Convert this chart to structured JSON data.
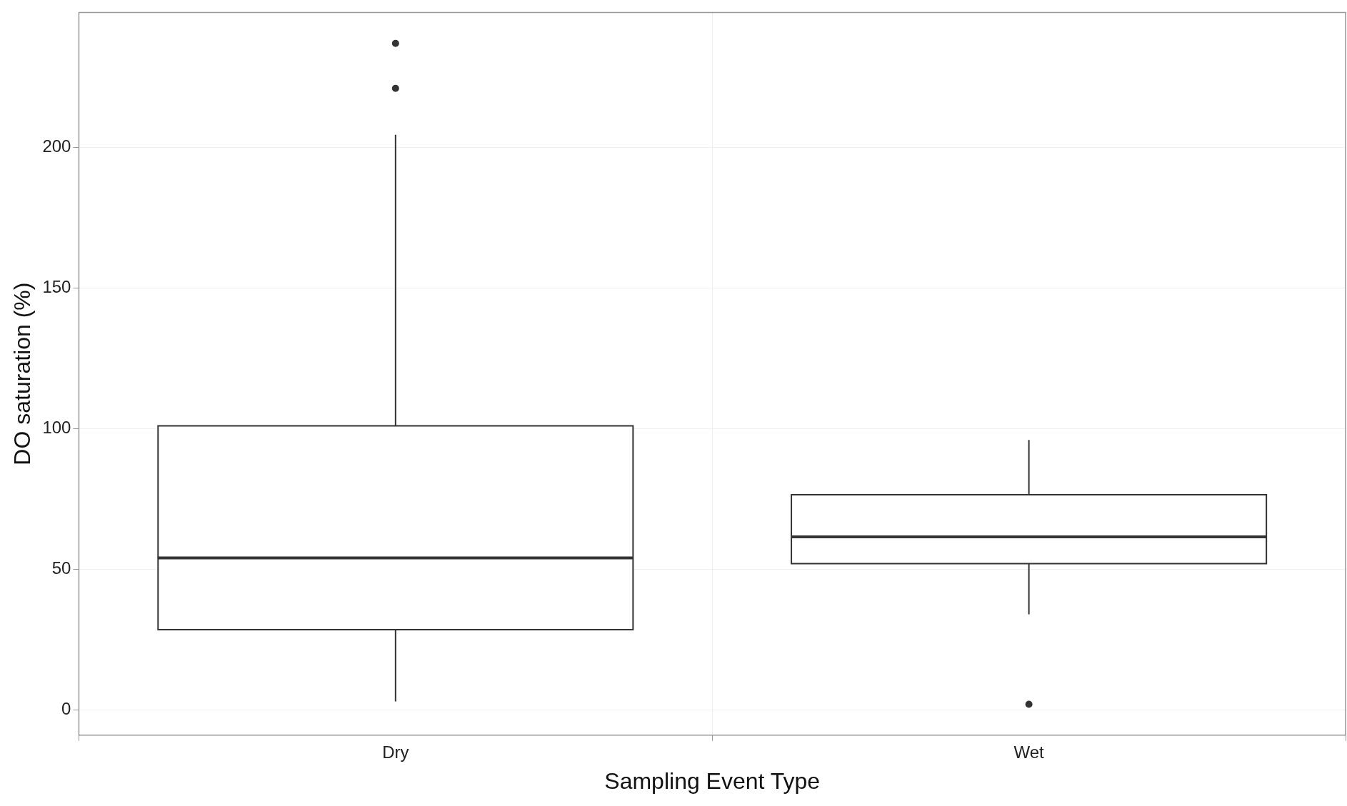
{
  "chart_data": {
    "type": "box",
    "xlabel": "Sampling Event Type",
    "ylabel": "DO saturation (%)",
    "categories": [
      "Dry",
      "Wet"
    ],
    "boxes": [
      {
        "low": 3,
        "q1": 28.5,
        "median": 54,
        "q3": 101,
        "high": 204.5,
        "outliers": [
          237,
          221
        ]
      },
      {
        "low": 34,
        "q1": 52,
        "median": 61.5,
        "q3": 76.5,
        "high": 96,
        "outliers": [
          2
        ]
      }
    ],
    "ylim": [
      -9,
      248
    ],
    "yticks": [
      0,
      50,
      100,
      150,
      200
    ],
    "grid": true
  }
}
